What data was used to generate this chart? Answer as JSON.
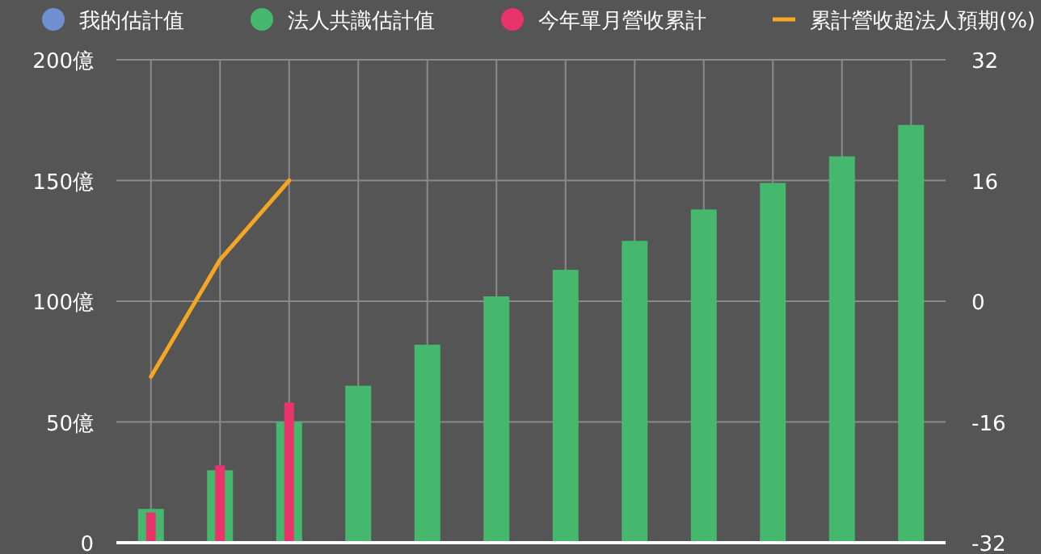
{
  "chart_data": {
    "type": "bar",
    "categories": [
      null,
      null,
      null,
      null,
      null,
      null,
      null,
      null,
      null,
      null,
      null,
      null
    ],
    "series": [
      {
        "name": "我的估計值",
        "color": "#6f8fd0",
        "values": [
          null,
          null,
          null,
          null,
          null,
          null,
          null,
          null,
          null,
          null,
          null,
          null
        ]
      },
      {
        "name": "法人共識估計值",
        "color": "#45b86e",
        "values": [
          14,
          30,
          50,
          65,
          82,
          102,
          113,
          125,
          138,
          149,
          160,
          173
        ]
      },
      {
        "name": "今年單月營收累計",
        "color": "#e8336b",
        "values": [
          12.5,
          32,
          58,
          null,
          null,
          null,
          null,
          null,
          null,
          null,
          null,
          null
        ]
      },
      {
        "name": "累計營收超法人預期(%)",
        "type": "line",
        "axis": "y2",
        "color": "#f5a623",
        "values": [
          -10,
          5.5,
          16,
          null,
          null,
          null,
          null,
          null,
          null,
          null,
          null,
          null
        ]
      }
    ],
    "ylim": [
      0,
      200
    ],
    "yticks": [
      0,
      {
        "value": 50,
        "label": "50億"
      },
      {
        "value": 100,
        "label": "100億"
      },
      {
        "value": 150,
        "label": "150億"
      },
      {
        "value": 200,
        "label": "200億"
      }
    ],
    "y2lim": [
      -32,
      32
    ],
    "y2ticks": [
      -32,
      -16,
      0,
      16,
      32
    ],
    "grid": true,
    "legend": "top"
  }
}
